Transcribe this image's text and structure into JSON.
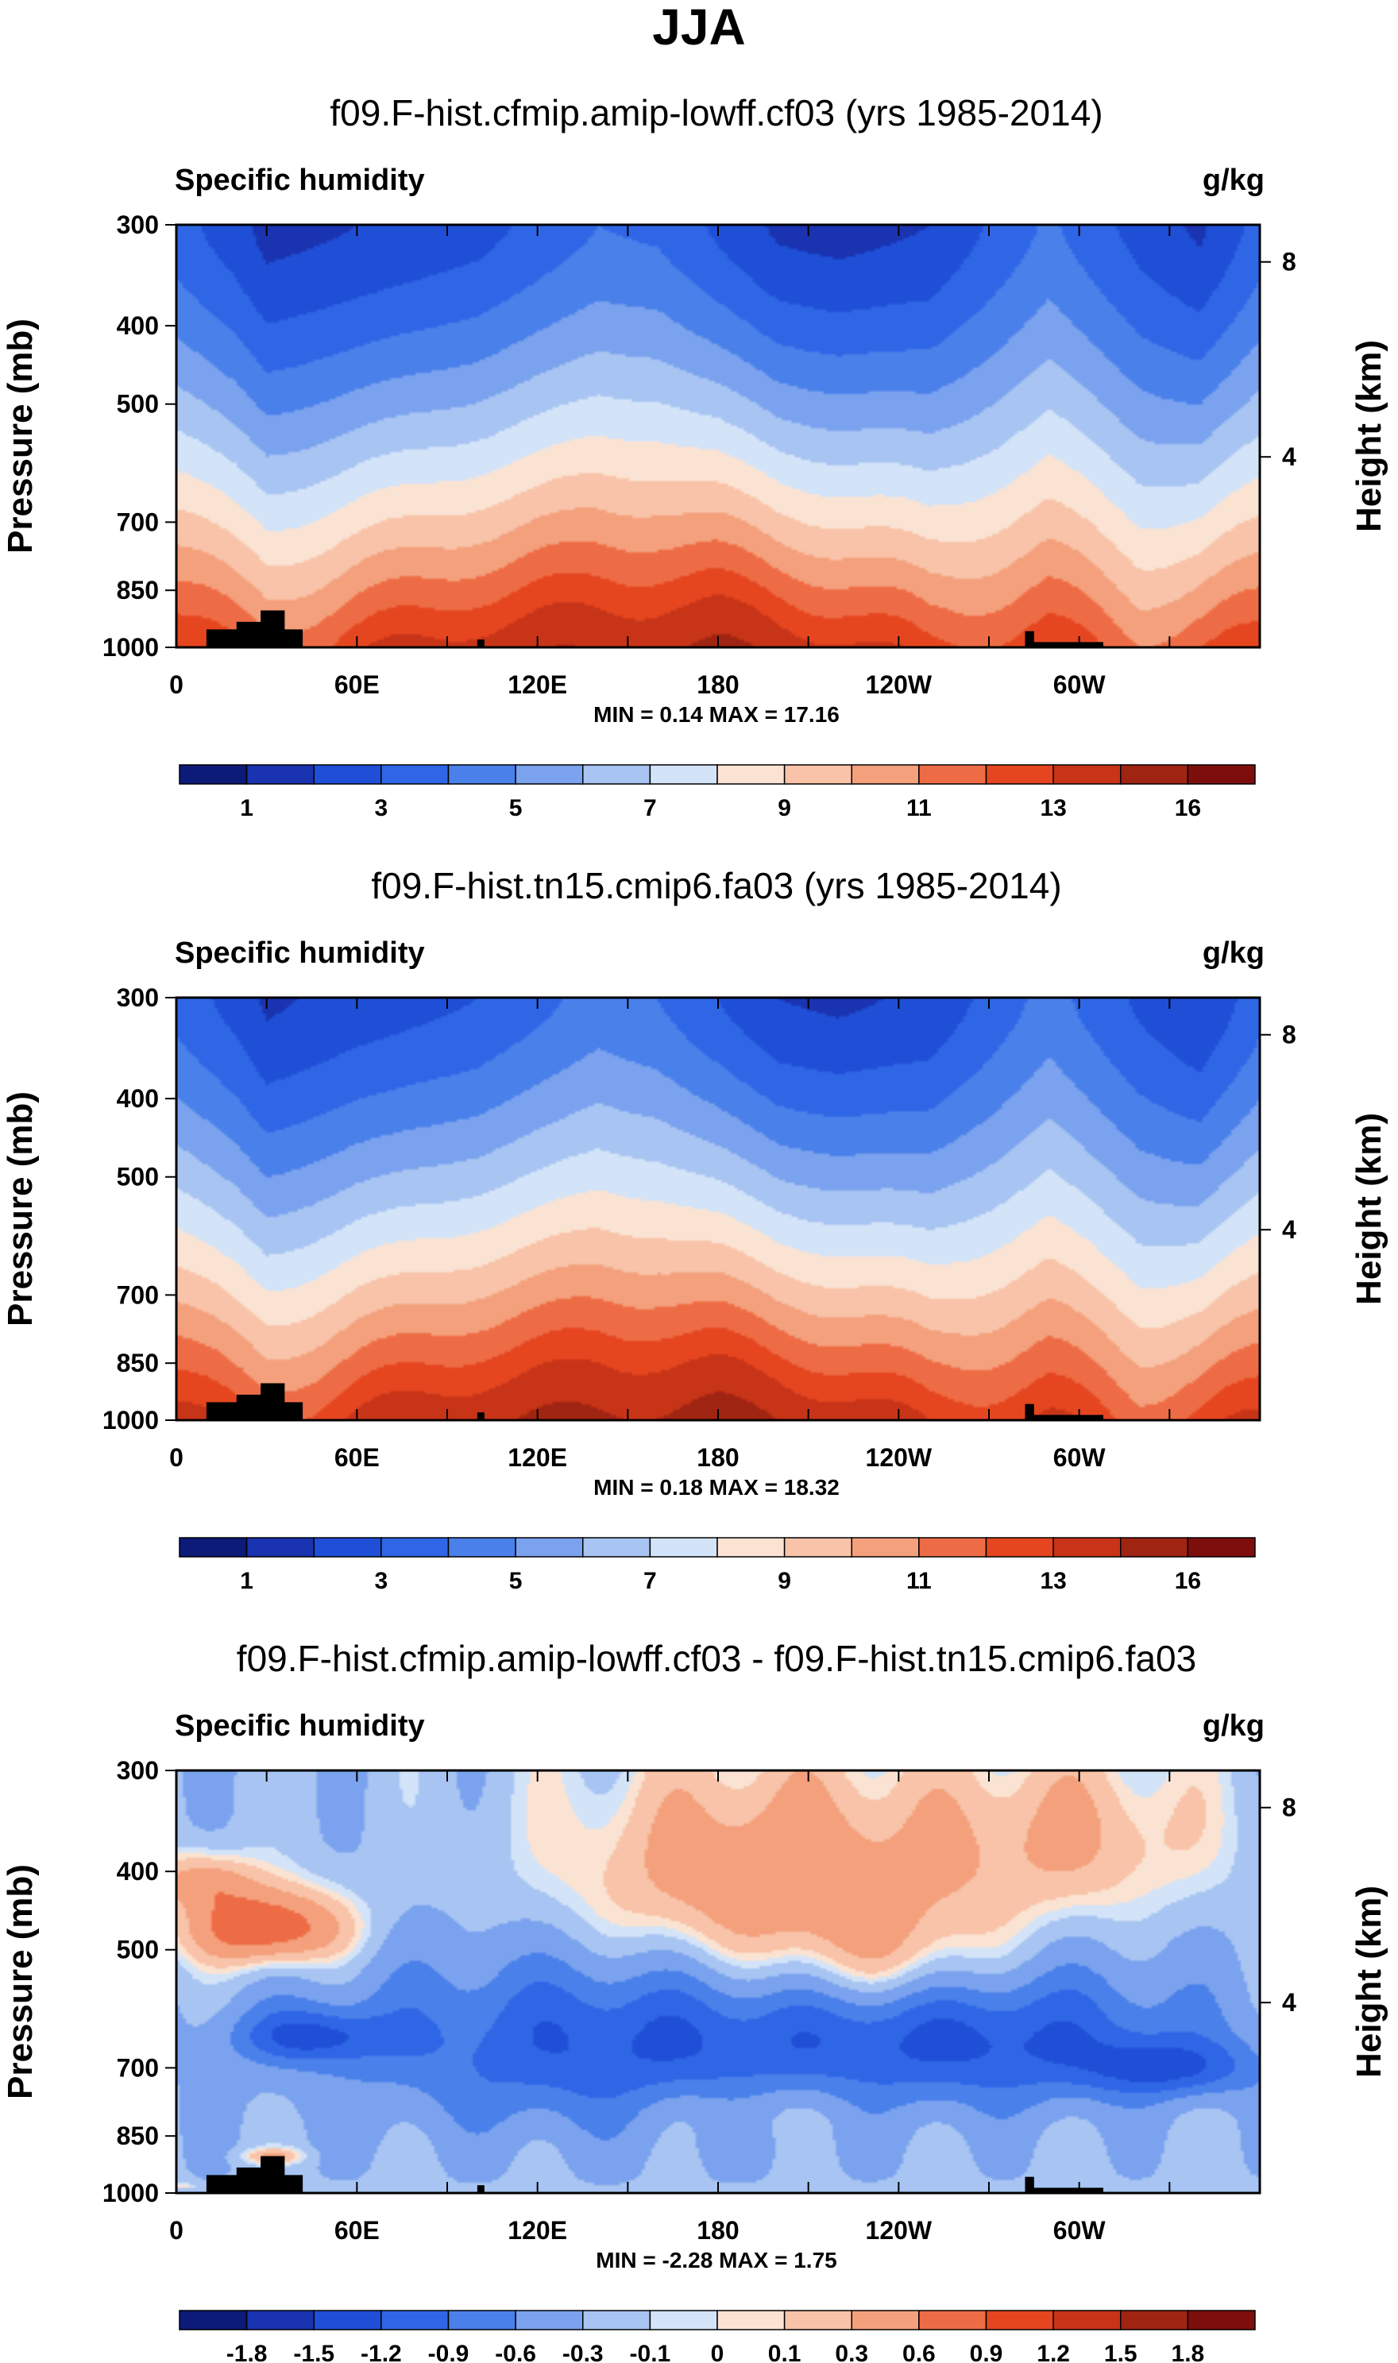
{
  "page_title": "JJA",
  "colors": {
    "frame": "#000000",
    "text": "#000000",
    "topography": "#000000"
  },
  "chart_data": [
    {
      "type": "heatmap",
      "title": "f09.F-hist.cfmip.amip-lowff.cf03 (yrs 1985-2014)",
      "left_label": "Specific humidity",
      "units": "g/kg",
      "ylabel": "Pressure (mb)",
      "ylabel_right": "Height (km)",
      "x_ticks": [
        "0",
        "60E",
        "120E",
        "180",
        "120W",
        "60W"
      ],
      "y_ticks": [
        "300",
        "400",
        "500",
        "700",
        "850",
        "1000"
      ],
      "y_ticks_right": [
        "8",
        "4"
      ],
      "stats": "MIN =   0.14  MAX =  17.16",
      "ylim": [
        1000,
        300
      ],
      "colorbar": {
        "labels": [
          "1",
          "3",
          "5",
          "7",
          "9",
          "11",
          "13",
          "16"
        ],
        "colors": [
          "#0c1a78",
          "#1a33b0",
          "#1f4fd6",
          "#2f66e6",
          "#4a80ea",
          "#7aa2ee",
          "#a7c4f2",
          "#d3e3f8",
          "#fbe3d3",
          "#f8c3a8",
          "#f4a07c",
          "#ee6c45",
          "#e5461f",
          "#c83418",
          "#a02412",
          "#7e0e0c"
        ]
      },
      "field": {
        "kind": "sh",
        "min": 0.14,
        "max": 17.16,
        "upper": [
          [
            0,
            3.4
          ],
          [
            20,
            2.4
          ],
          [
            30,
            1.6
          ],
          [
            60,
            2.0
          ],
          [
            100,
            2.6
          ],
          [
            140,
            4.0
          ],
          [
            160,
            3.8
          ],
          [
            180,
            2.8
          ],
          [
            200,
            1.8
          ],
          [
            220,
            1.6
          ],
          [
            250,
            2.0
          ],
          [
            290,
            4.2
          ],
          [
            320,
            2.6
          ],
          [
            340,
            1.8
          ],
          [
            360,
            3.4
          ]
        ],
        "lower": [
          [
            0,
            13.0
          ],
          [
            20,
            12.0
          ],
          [
            30,
            11.6
          ],
          [
            60,
            12.6
          ],
          [
            100,
            13.8
          ],
          [
            140,
            14.2
          ],
          [
            180,
            14.6
          ],
          [
            220,
            13.4
          ],
          [
            250,
            12.2
          ],
          [
            290,
            12.6
          ],
          [
            320,
            11.4
          ],
          [
            360,
            12.4
          ]
        ]
      }
    },
    {
      "type": "heatmap",
      "title": "f09.F-hist.tn15.cmip6.fa03 (yrs 1985-2014)",
      "left_label": "Specific humidity",
      "units": "g/kg",
      "ylabel": "Pressure (mb)",
      "ylabel_right": "Height (km)",
      "x_ticks": [
        "0",
        "60E",
        "120E",
        "180",
        "120W",
        "60W"
      ],
      "y_ticks": [
        "300",
        "400",
        "500",
        "700",
        "850",
        "1000"
      ],
      "y_ticks_right": [
        "8",
        "4"
      ],
      "stats": "MIN =   0.18  MAX =  18.32",
      "ylim": [
        1000,
        300
      ],
      "colorbar": {
        "labels": [
          "1",
          "3",
          "5",
          "7",
          "9",
          "11",
          "13",
          "16"
        ],
        "colors": [
          "#0c1a78",
          "#1a33b0",
          "#1f4fd6",
          "#2f66e6",
          "#4a80ea",
          "#7aa2ee",
          "#a7c4f2",
          "#d3e3f8",
          "#fbe3d3",
          "#f8c3a8",
          "#f4a07c",
          "#ee6c45",
          "#e5461f",
          "#c83418",
          "#a02412",
          "#7e0e0c"
        ]
      },
      "field": {
        "kind": "sh",
        "min": 0.18,
        "max": 18.32,
        "upper": [
          [
            0,
            3.6
          ],
          [
            20,
            2.6
          ],
          [
            30,
            1.8
          ],
          [
            60,
            2.4
          ],
          [
            100,
            3.0
          ],
          [
            140,
            4.4
          ],
          [
            160,
            4.0
          ],
          [
            180,
            3.0
          ],
          [
            200,
            2.0
          ],
          [
            220,
            1.8
          ],
          [
            250,
            2.2
          ],
          [
            290,
            4.4
          ],
          [
            320,
            2.8
          ],
          [
            340,
            2.0
          ],
          [
            360,
            3.6
          ]
        ],
        "lower": [
          [
            0,
            13.6
          ],
          [
            20,
            12.4
          ],
          [
            30,
            12.0
          ],
          [
            60,
            13.2
          ],
          [
            100,
            14.4
          ],
          [
            140,
            14.8
          ],
          [
            180,
            15.2
          ],
          [
            220,
            14.0
          ],
          [
            250,
            12.8
          ],
          [
            290,
            13.0
          ],
          [
            320,
            11.8
          ],
          [
            360,
            13.0
          ]
        ]
      }
    },
    {
      "type": "heatmap",
      "title": "f09.F-hist.cfmip.amip-lowff.cf03 - f09.F-hist.tn15.cmip6.fa03",
      "left_label": "Specific humidity",
      "units": "g/kg",
      "ylabel": "Pressure (mb)",
      "ylabel_right": "Height (km)",
      "x_ticks": [
        "0",
        "60E",
        "120E",
        "180",
        "120W",
        "60W"
      ],
      "y_ticks": [
        "300",
        "400",
        "500",
        "700",
        "850",
        "1000"
      ],
      "y_ticks_right": [
        "8",
        "4"
      ],
      "stats": "MIN =  -2.28  MAX =   1.75",
      "ylim": [
        1000,
        300
      ],
      "colorbar": {
        "labels": [
          "-1.8",
          "-1.5",
          "-1.2",
          "-0.9",
          "-0.6",
          "-0.3",
          "-0.1",
          "0",
          "0.1",
          "0.3",
          "0.6",
          "0.9",
          "1.2",
          "1.5",
          "1.8"
        ],
        "colors": [
          "#0c1a78",
          "#1a33b0",
          "#1f4fd6",
          "#2f66e6",
          "#4a80ea",
          "#7aa2ee",
          "#a7c4f2",
          "#d3e3f8",
          "#fbe3d3",
          "#f8c3a8",
          "#f4a07c",
          "#ee6c45",
          "#e5461f",
          "#c83418",
          "#a02412",
          "#7e0e0c"
        ]
      },
      "field": {
        "kind": "diff",
        "min": -2.28,
        "max": 1.75,
        "blobs": [
          [
            150,
            650,
            0.55,
            -1.0,
            2.0
          ],
          [
            30,
            470,
            0.18,
            1.2,
            1.8
          ],
          [
            195,
            420,
            0.7,
            0.9,
            0.8
          ],
          [
            300,
            360,
            0.6,
            0.5,
            0.5
          ],
          [
            275,
            640,
            0.55,
            -0.9,
            1.1
          ],
          [
            45,
            640,
            0.25,
            -0.9,
            0.8
          ],
          [
            240,
            520,
            0.5,
            0.45,
            0.5
          ],
          [
            8,
            410,
            0.22,
            0.6,
            0.5
          ],
          [
            330,
            700,
            0.4,
            -0.8,
            0.4
          ],
          [
            190,
            780,
            0.55,
            0.35,
            0.4
          ],
          [
            2,
            980,
            0.12,
            0.35,
            0.12
          ],
          [
            32,
            900,
            0.1,
            0.55,
            0.8
          ]
        ]
      }
    }
  ]
}
